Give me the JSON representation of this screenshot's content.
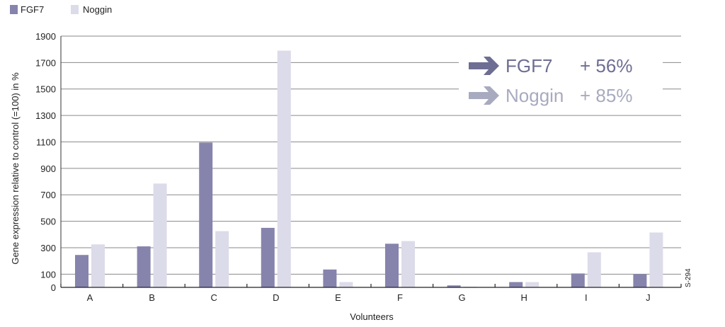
{
  "chart_data": {
    "type": "bar",
    "categories": [
      "A",
      "B",
      "C",
      "D",
      "E",
      "F",
      "G",
      "H",
      "I",
      "J"
    ],
    "series": [
      {
        "name": "FGF7",
        "color": "#8683ad",
        "values": [
          245,
          310,
          1095,
          450,
          135,
          330,
          15,
          40,
          105,
          100
        ]
      },
      {
        "name": "Noggin",
        "color": "#dcdbe9",
        "values": [
          325,
          785,
          425,
          1790,
          40,
          350,
          5,
          40,
          265,
          415
        ]
      }
    ],
    "xlabel": "Volunteers",
    "ylabel": "Gene expression relative to control (=100) in %",
    "yticks": [
      0,
      100,
      300,
      500,
      700,
      900,
      1100,
      1300,
      1500,
      1700,
      1900
    ],
    "ylim": [
      0,
      1900
    ],
    "grid": true,
    "legend_position": "top-left",
    "callouts": [
      {
        "label": "FGF7",
        "value": "+ 56%",
        "color": "#6e6d93"
      },
      {
        "label": "Noggin",
        "value": "+ 85%",
        "color": "#a8aabf"
      }
    ],
    "side_code": "S-294"
  }
}
